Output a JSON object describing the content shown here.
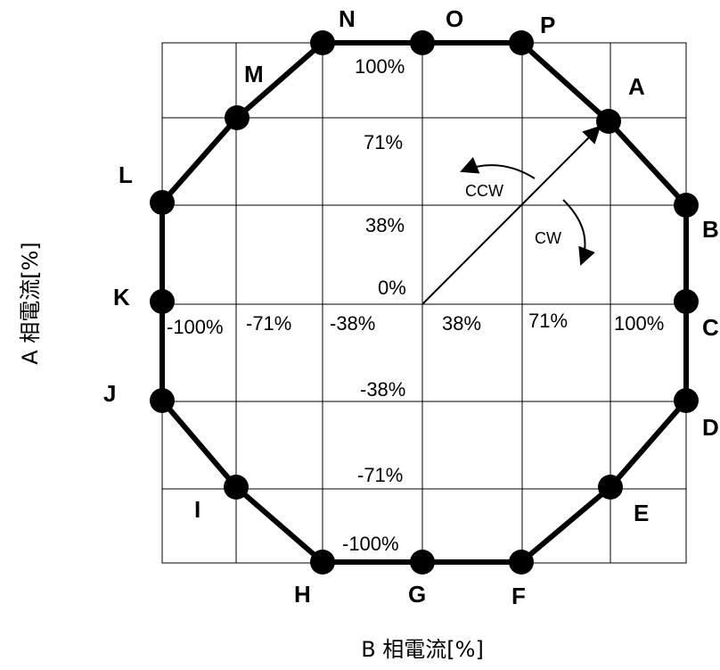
{
  "axes": {
    "x_label": "B 相電流[%]",
    "y_label": "A 相電流[%]"
  },
  "ticks": {
    "y_top": [
      "100%",
      "71%",
      "38%",
      "0%"
    ],
    "x_left": [
      "-100%",
      "-71%",
      "-38%"
    ],
    "x_right": [
      "38%",
      "71%",
      "100%"
    ],
    "y_bottom": [
      "-38%",
      "-71%",
      "-100%"
    ]
  },
  "directions": {
    "ccw": "CCW",
    "cw": "CW"
  },
  "points": {
    "A": "A",
    "B": "B",
    "C": "C",
    "D": "D",
    "E": "E",
    "F": "F",
    "G": "G",
    "H": "H",
    "I": "I",
    "J": "J",
    "K": "K",
    "L": "L",
    "M": "M",
    "N": "N",
    "O": "O",
    "P": "P"
  }
}
